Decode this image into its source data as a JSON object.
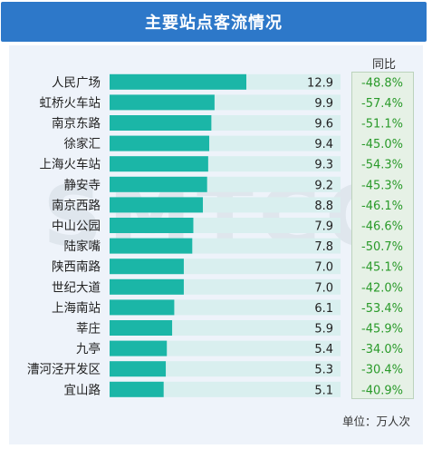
{
  "title": "主要站点客流情况",
  "watermark": "SMTCC",
  "yoy_header": "同比",
  "unit_label": "单位：万人次",
  "colors": {
    "title_bar": "#2d78c9",
    "bar": "#1bb6a7",
    "bar_track": "#d9efef",
    "yoy_text": "#2a9a2a"
  },
  "chart_data": {
    "type": "bar",
    "orientation": "horizontal",
    "categories": [
      "人民广场",
      "虹桥火车站",
      "南京东路",
      "徐家汇",
      "上海火车站",
      "静安寺",
      "南京西路",
      "中山公园",
      "陆家嘴",
      "陕西南路",
      "世纪大道",
      "上海南站",
      "莘庄",
      "九亭",
      "漕河泾开发区",
      "宜山路"
    ],
    "values": [
      12.9,
      9.9,
      9.6,
      9.4,
      9.3,
      9.2,
      8.8,
      7.9,
      7.8,
      7.0,
      7.0,
      6.1,
      5.9,
      5.4,
      5.3,
      5.1
    ],
    "value_labels": [
      "12.9",
      "9.9",
      "9.6",
      "9.4",
      "9.3",
      "9.2",
      "8.8",
      "7.9",
      "7.8",
      "7.0",
      "7.0",
      "6.1",
      "5.9",
      "5.4",
      "5.3",
      "5.1"
    ],
    "yoy": [
      "-48.8%",
      "-57.4%",
      "-51.1%",
      "-45.0%",
      "-54.3%",
      "-45.3%",
      "-46.1%",
      "-46.6%",
      "-50.7%",
      "-45.1%",
      "-42.0%",
      "-53.4%",
      "-45.9%",
      "-34.0%",
      "-30.4%",
      "-40.9%"
    ],
    "xlim": [
      0,
      22
    ],
    "title": "主要站点客流情况",
    "unit": "万人次",
    "grid": false,
    "legend": "none"
  }
}
